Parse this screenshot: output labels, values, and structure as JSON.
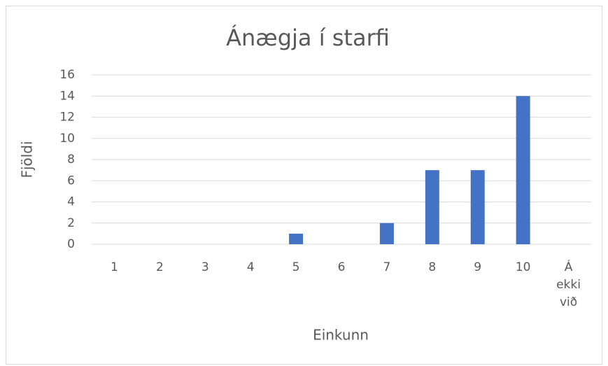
{
  "chart_data": {
    "type": "bar",
    "title": "Ánægja í starfi",
    "y_label": "Fjöldi",
    "x_label": "Einkunn",
    "categories": [
      "1",
      "2",
      "3",
      "4",
      "5",
      "6",
      "7",
      "8",
      "9",
      "10",
      "Á ekki við"
    ],
    "values": [
      0,
      0,
      0,
      0,
      1,
      0,
      2,
      7,
      7,
      14,
      0
    ],
    "color": "#4472c4",
    "ylim": [
      0,
      16
    ],
    "yticks": [
      0,
      2,
      4,
      6,
      8,
      10,
      12,
      14,
      16
    ],
    "grid": true
  }
}
